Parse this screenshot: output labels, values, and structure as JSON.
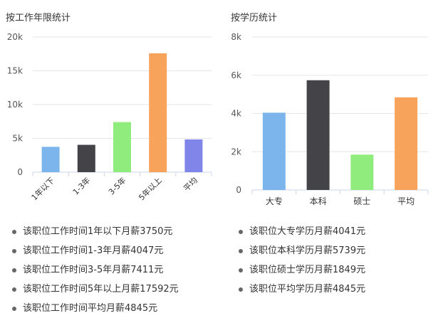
{
  "chart_data": [
    {
      "type": "bar",
      "title": "按工作年限统计",
      "categories": [
        "1年以下",
        "1-3年",
        "3-5年",
        "5年以上",
        "平均"
      ],
      "values": [
        3750,
        4047,
        7411,
        17592,
        4845
      ],
      "colors": [
        "#7cb5ec",
        "#434348",
        "#90ed7d",
        "#f7a35c",
        "#8085e9"
      ],
      "ylim": [
        0,
        20000
      ],
      "yticks": [
        {
          "v": 0,
          "label": "0"
        },
        {
          "v": 5000,
          "label": "5k"
        },
        {
          "v": 10000,
          "label": "10k"
        },
        {
          "v": 15000,
          "label": "15k"
        },
        {
          "v": 20000,
          "label": "20k"
        }
      ],
      "grid": true,
      "legend": "none",
      "notes": [
        "该职位工作时间1年以下月薪3750元",
        "该职位工作时间1-3年月薪4047元",
        "该职位工作时间3-5年月薪7411元",
        "该职位工作时间5年以上月薪17592元",
        "该职位工作时间平均月薪4845元"
      ]
    },
    {
      "type": "bar",
      "title": "按学历统计",
      "categories": [
        "大专",
        "本科",
        "硕士",
        "平均"
      ],
      "values": [
        4041,
        5739,
        1849,
        4845
      ],
      "colors": [
        "#7cb5ec",
        "#434348",
        "#90ed7d",
        "#f7a35c"
      ],
      "ylim": [
        0,
        8000
      ],
      "yticks": [
        {
          "v": 0,
          "label": "0"
        },
        {
          "v": 2000,
          "label": "2k"
        },
        {
          "v": 4000,
          "label": "4k"
        },
        {
          "v": 6000,
          "label": "6k"
        },
        {
          "v": 8000,
          "label": "8k"
        }
      ],
      "grid": true,
      "legend": "none",
      "notes": [
        "该职位大专学历月薪4041元",
        "该职位本科学历月薪5739元",
        "该职位硕士学历月薪1849元",
        "该职位平均学历月薪4845元"
      ]
    }
  ]
}
